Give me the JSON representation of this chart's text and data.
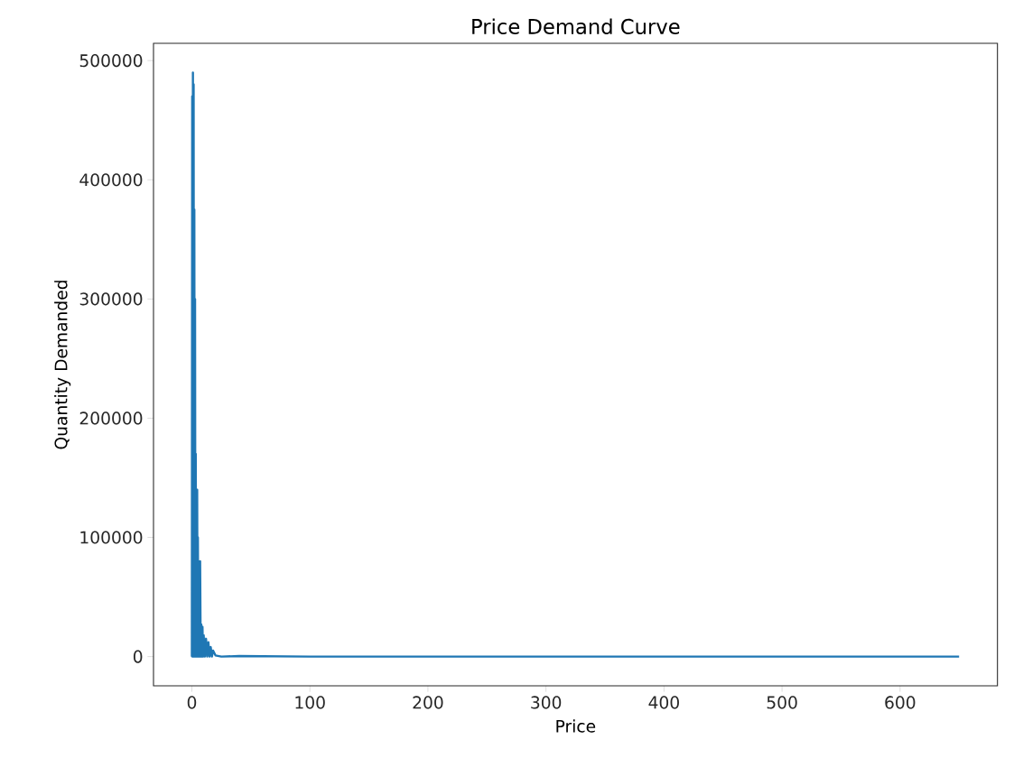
{
  "chart_data": {
    "type": "line",
    "title": "Price Demand Curve",
    "xlabel": "Price",
    "ylabel": "Quantity Demanded",
    "x": [
      0,
      0.3,
      0.6,
      0.9,
      1.2,
      1.5,
      1.8,
      2.1,
      2.4,
      2.7,
      3.0,
      3.3,
      3.6,
      3.9,
      4.2,
      4.5,
      4.8,
      5.1,
      5.5,
      6,
      6.5,
      7,
      7.5,
      8,
      8.5,
      9,
      9.5,
      10,
      11,
      12,
      13,
      14,
      15,
      16,
      17,
      18,
      20,
      25,
      40,
      100,
      300,
      500,
      650
    ],
    "series": [
      {
        "color": "#1f77b4",
        "values": [
          0,
          470000,
          0,
          490000,
          0,
          480000,
          0,
          375000,
          0,
          300000,
          0,
          170000,
          0,
          140000,
          0,
          140000,
          0,
          100000,
          0,
          80000,
          0,
          80000,
          0,
          27000,
          0,
          25000,
          0,
          18000,
          0,
          15000,
          0,
          12000,
          0,
          8000,
          0,
          5000,
          1000,
          0,
          500,
          0,
          0,
          0,
          0
        ]
      }
    ],
    "xlim": [
      -32.5,
      682.5
    ],
    "ylim": [
      -24500,
      514500
    ],
    "xticks": [
      0,
      100,
      200,
      300,
      400,
      500,
      600
    ],
    "yticks": [
      0,
      100000,
      200000,
      300000,
      400000,
      500000
    ],
    "grid": false,
    "marker": "none",
    "line_style": "solid"
  }
}
